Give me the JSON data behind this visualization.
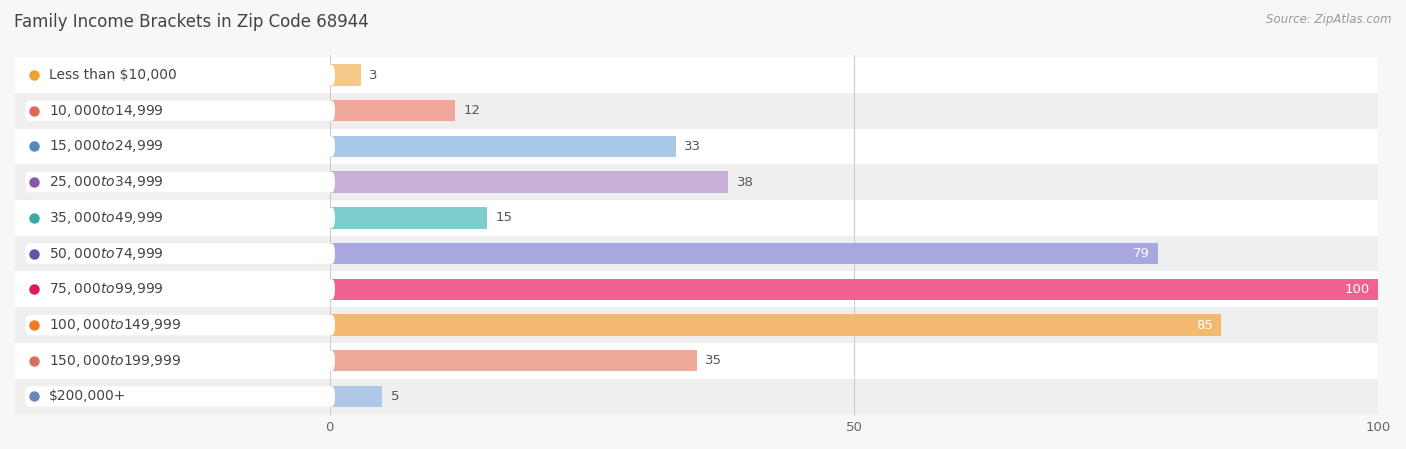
{
  "title": "Family Income Brackets in Zip Code 68944",
  "source": "Source: ZipAtlas.com",
  "categories": [
    "Less than $10,000",
    "$10,000 to $14,999",
    "$15,000 to $24,999",
    "$25,000 to $34,999",
    "$35,000 to $49,999",
    "$50,000 to $74,999",
    "$75,000 to $99,999",
    "$100,000 to $149,999",
    "$150,000 to $199,999",
    "$200,000+"
  ],
  "values": [
    3,
    12,
    33,
    38,
    15,
    79,
    100,
    85,
    35,
    5
  ],
  "bar_colors": [
    "#f5c98a",
    "#f0a89a",
    "#a8c8e8",
    "#c8b0d8",
    "#7ecece",
    "#a8a8e0",
    "#f06090",
    "#f5b870",
    "#f0a898",
    "#b0c8e8"
  ],
  "dot_colors": [
    "#f0a030",
    "#e06858",
    "#5888c0",
    "#8858a8",
    "#38a8a8",
    "#5858a8",
    "#e01858",
    "#f07828",
    "#d87060",
    "#6888b8"
  ],
  "xlim": [
    -30,
    100
  ],
  "xticks": [
    0,
    50,
    100
  ],
  "bar_height": 0.6,
  "background_color": "#f7f7f7",
  "row_bg_odd": "#ffffff",
  "row_bg_even": "#efefef",
  "title_fontsize": 12,
  "label_fontsize": 10,
  "value_fontsize": 9.5,
  "source_fontsize": 8.5
}
